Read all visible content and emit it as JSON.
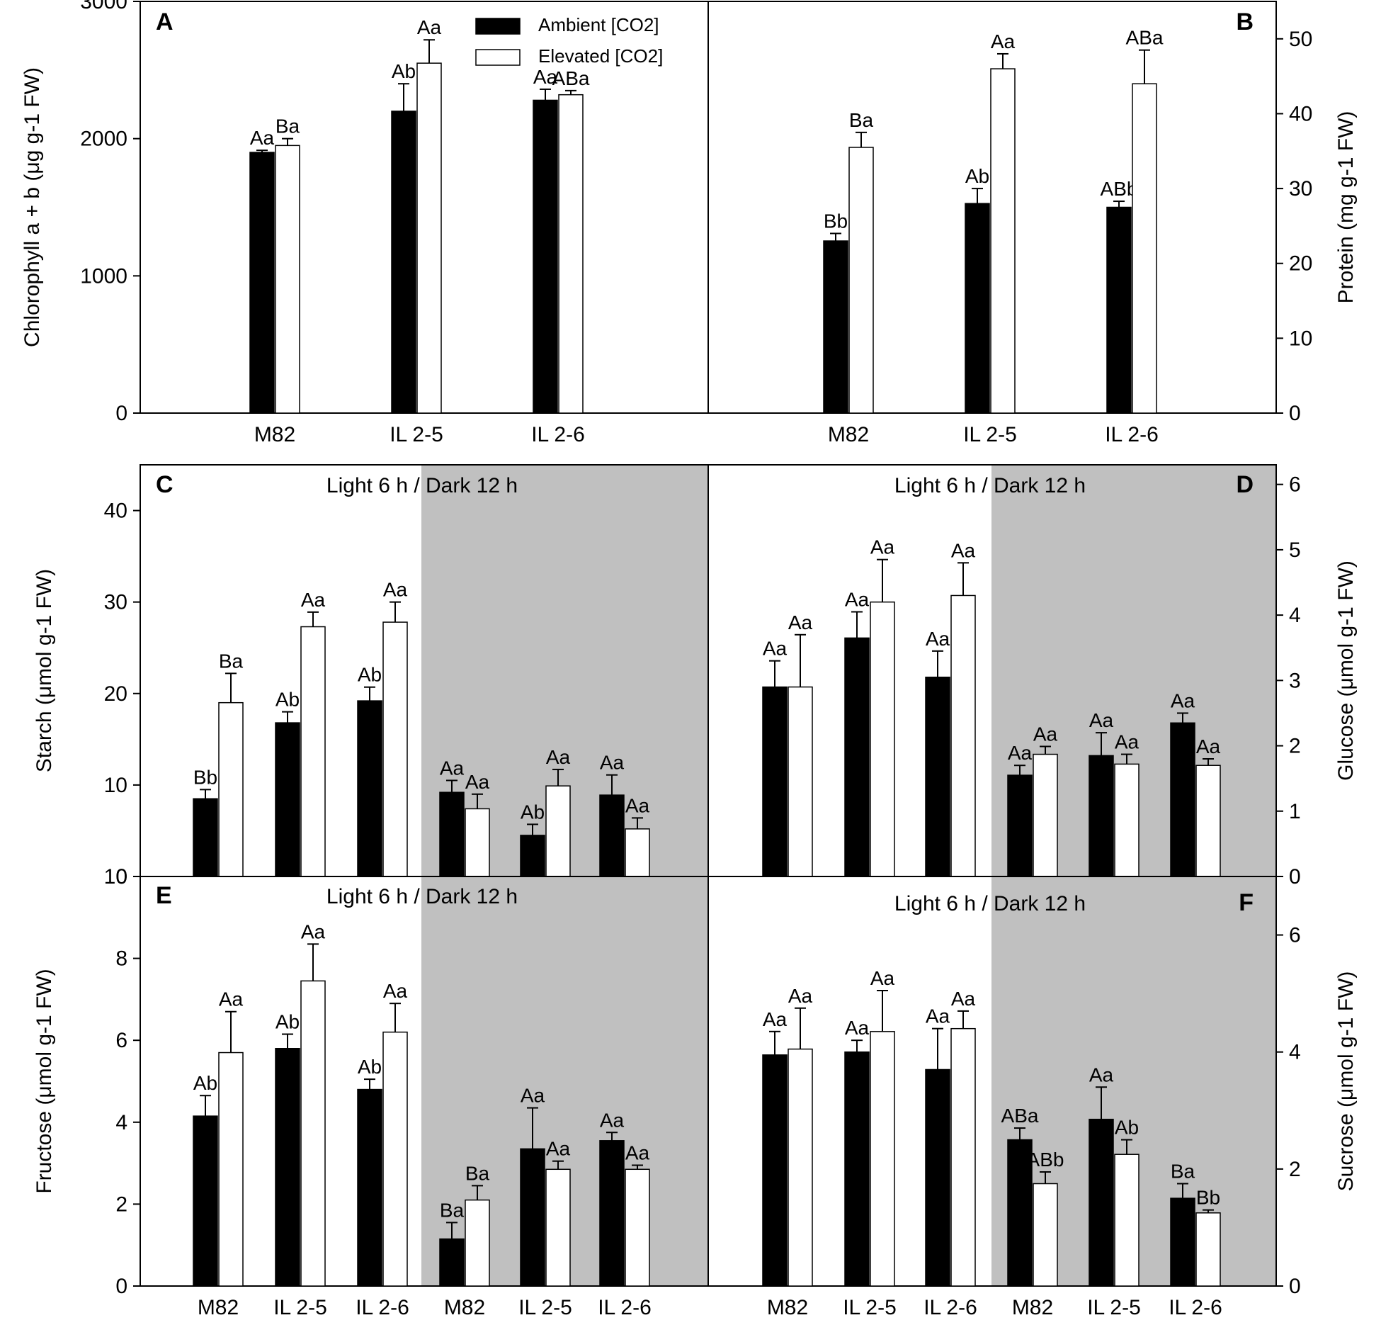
{
  "legend": {
    "ambient": "Ambient [CO2]",
    "elevated": "Elevated [CO2]"
  },
  "colors": {
    "ambient": "#000000",
    "elevated": "#ffffff",
    "dark_shade": "#c0c0c0"
  },
  "chart_data": [
    {
      "panel": "A",
      "type": "bar",
      "ylabel": "Chlorophyll a + b (μg g-1 FW)",
      "ylim": [
        0,
        3000
      ],
      "yticks": [
        0,
        1000,
        2000,
        3000
      ],
      "yaxis_side": "left",
      "categories": [
        "M82",
        "IL 2-5",
        "IL 2-6"
      ],
      "series": [
        {
          "name": "Ambient [CO2]",
          "values": [
            1900,
            2200,
            2280
          ],
          "errors": [
            15,
            200,
            80
          ],
          "labels": [
            "Aa",
            "Ab",
            "Aa"
          ]
        },
        {
          "name": "Elevated [CO2]",
          "values": [
            1950,
            2550,
            2320
          ],
          "errors": [
            50,
            170,
            30
          ],
          "labels": [
            "Ba",
            "Aa",
            "ABa"
          ]
        }
      ]
    },
    {
      "panel": "B",
      "type": "bar",
      "ylabel": "Protein (mg g-1 FW)",
      "ylim": [
        0,
        55
      ],
      "yticks": [
        0,
        10,
        20,
        30,
        40,
        50
      ],
      "yaxis_side": "right",
      "categories": [
        "M82",
        "IL 2-5",
        "IL 2-6"
      ],
      "series": [
        {
          "name": "Ambient [CO2]",
          "values": [
            23,
            28,
            27.5
          ],
          "errors": [
            1,
            2,
            0.8
          ],
          "labels": [
            "Bb",
            "Ab",
            "ABb"
          ]
        },
        {
          "name": "Elevated [CO2]",
          "values": [
            35.5,
            46,
            44
          ],
          "errors": [
            2,
            2,
            4.5
          ],
          "labels": [
            "Ba",
            "Aa",
            "ABa"
          ]
        }
      ]
    },
    {
      "panel": "C",
      "type": "bar",
      "title": "Light 6 h / Dark 12 h",
      "ylabel": "Starch (μmol g-1 FW)",
      "ylim": [
        0,
        45
      ],
      "yticks": [
        0,
        10,
        20,
        30,
        40
      ],
      "yaxis_side": "left",
      "categories": [
        "M82",
        "IL 2-5",
        "IL 2-6",
        "M82",
        "IL 2-5",
        "IL 2-6"
      ],
      "series": [
        {
          "name": "Ambient [CO2]",
          "values": [
            8.5,
            16.8,
            19.2,
            9.2,
            4.5,
            8.9
          ],
          "errors": [
            1,
            1.2,
            1.5,
            1.3,
            1.2,
            2.2
          ],
          "labels": [
            "Bb",
            "Ab",
            "Ab",
            "Aa",
            "Ab",
            "Aa"
          ]
        },
        {
          "name": "Elevated [CO2]",
          "values": [
            19,
            27.3,
            27.8,
            7.4,
            9.9,
            5.2
          ],
          "errors": [
            3.2,
            1.6,
            2.2,
            1.6,
            1.8,
            1.2
          ],
          "labels": [
            "Ba",
            "Aa",
            "Aa",
            "Aa",
            "Aa",
            "Aa"
          ]
        }
      ]
    },
    {
      "panel": "D",
      "type": "bar",
      "title": "Light 6 h / Dark 12 h",
      "ylabel": "Glucose (μmol g-1 FW)",
      "ylim": [
        0,
        6.3
      ],
      "yticks": [
        0,
        1,
        2,
        3,
        4,
        5,
        6
      ],
      "yaxis_side": "right",
      "categories": [
        "M82",
        "IL 2-5",
        "IL 2-6",
        "M82",
        "IL 2-5",
        "IL 2-6"
      ],
      "series": [
        {
          "name": "Ambient [CO2]",
          "values": [
            2.9,
            3.65,
            3.05,
            1.55,
            1.85,
            2.35
          ],
          "errors": [
            0.4,
            0.4,
            0.4,
            0.15,
            0.35,
            0.15
          ],
          "labels": [
            "Aa",
            "Aa",
            "Aa",
            "Aa",
            "Aa",
            "Aa"
          ]
        },
        {
          "name": "Elevated [CO2]",
          "values": [
            2.9,
            4.2,
            4.3,
            1.87,
            1.72,
            1.7
          ],
          "errors": [
            0.8,
            0.65,
            0.5,
            0.12,
            0.15,
            0.1
          ],
          "labels": [
            "Aa",
            "Aa",
            "Aa",
            "Aa",
            "Aa",
            "Aa"
          ]
        }
      ]
    },
    {
      "panel": "E",
      "type": "bar",
      "title": "Light 6 h / Dark 12 h",
      "ylabel": "Fructose (μmol g-1 FW)",
      "ylim": [
        0,
        10
      ],
      "yticks": [
        0,
        2,
        4,
        6,
        8,
        10
      ],
      "yaxis_side": "left",
      "categories": [
        "M82",
        "IL 2-5",
        "IL 2-6",
        "M82",
        "IL 2-5",
        "IL 2-6"
      ],
      "series": [
        {
          "name": "Ambient [CO2]",
          "values": [
            4.15,
            5.8,
            4.8,
            1.15,
            3.35,
            3.55
          ],
          "errors": [
            0.5,
            0.35,
            0.25,
            0.4,
            1,
            0.2
          ],
          "labels": [
            "Ab",
            "Ab",
            "Ab",
            "Ba",
            "Aa",
            "Aa"
          ]
        },
        {
          "name": "Elevated [CO2]",
          "values": [
            5.7,
            7.45,
            6.2,
            2.1,
            2.85,
            2.85
          ],
          "errors": [
            1,
            0.9,
            0.7,
            0.35,
            0.2,
            0.1
          ],
          "labels": [
            "Aa",
            "Aa",
            "Aa",
            "Ba",
            "Aa",
            "Aa"
          ]
        }
      ]
    },
    {
      "panel": "F",
      "type": "bar",
      "title": "Light 6 h / Dark 12 h",
      "ylabel": "Sucrose (μmol g-1 FW)",
      "ylim": [
        0,
        7
      ],
      "yticks": [
        0,
        2,
        4,
        6
      ],
      "yaxis_side": "right",
      "categories": [
        "M82",
        "IL 2-5",
        "IL 2-6",
        "M82",
        "IL 2-5",
        "IL 2-6"
      ],
      "series": [
        {
          "name": "Ambient [CO2]",
          "values": [
            3.95,
            4,
            3.7,
            2.5,
            2.85,
            1.5
          ],
          "errors": [
            0.4,
            0.2,
            0.7,
            0.2,
            0.55,
            0.25
          ],
          "labels": [
            "Aa",
            "Aa",
            "Aa",
            "ABa",
            "Aa",
            "Ba"
          ]
        },
        {
          "name": "Elevated [CO2]",
          "values": [
            4.05,
            4.35,
            4.4,
            1.75,
            2.25,
            1.25
          ],
          "errors": [
            0.7,
            0.7,
            0.3,
            0.2,
            0.25,
            0.05
          ],
          "labels": [
            "Aa",
            "Aa",
            "Aa",
            "ABb",
            "Ab",
            "Bb"
          ]
        }
      ]
    }
  ]
}
